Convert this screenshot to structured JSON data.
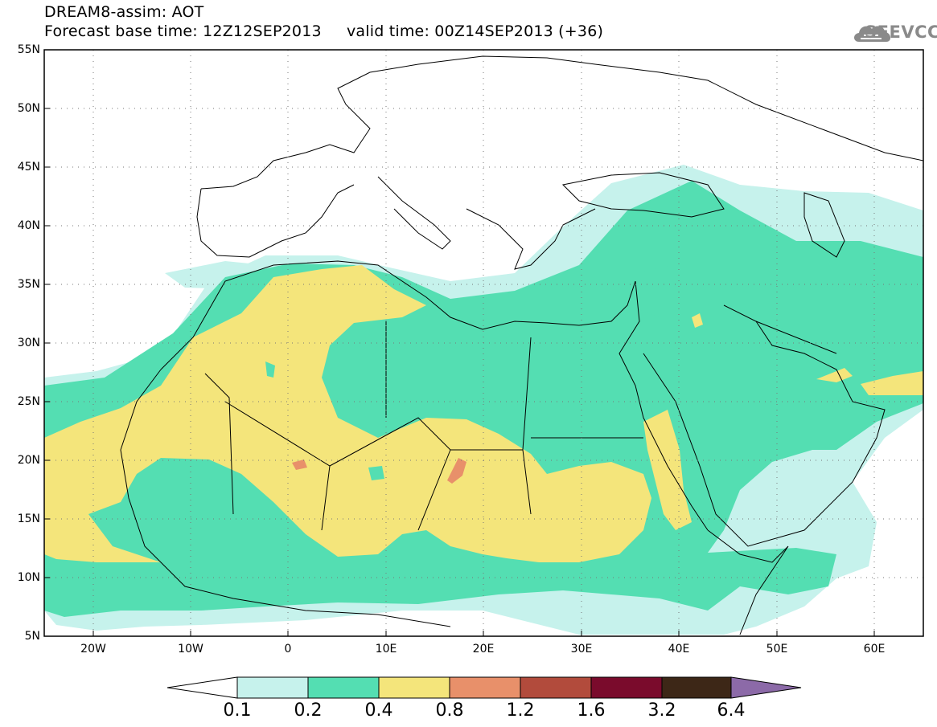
{
  "header": {
    "title_line1": "DREAM8-assim: AOT",
    "title_line2": "Forecast base time: 12Z12SEP2013     valid time: 00Z14SEP2013 (+36)"
  },
  "logo": {
    "text": "SEEVCCC",
    "icon": "cloud-icon",
    "color": "#8a8a8a"
  },
  "map": {
    "lon_range": [
      -25,
      65
    ],
    "lat_range": [
      5,
      55
    ],
    "lat_labels": [
      "55N",
      "50N",
      "45N",
      "40N",
      "35N",
      "30N",
      "25N",
      "20N",
      "15N",
      "10N",
      "5N"
    ],
    "lon_labels": [
      "20W",
      "10W",
      "0",
      "10E",
      "20E",
      "30E",
      "40E",
      "50E",
      "60E"
    ],
    "grid": "dotted",
    "variable": "AOT"
  },
  "colorbar": {
    "levels": [
      "0.1",
      "0.2",
      "0.4",
      "0.8",
      "1.2",
      "1.6",
      "3.2",
      "6.4"
    ],
    "colors": [
      "#ffffff",
      "#c6f2ec",
      "#54deb2",
      "#f4e57b",
      "#e8906a",
      "#b24b3c",
      "#7a0b2c",
      "#3d2717",
      "#8c6aa8"
    ]
  }
}
